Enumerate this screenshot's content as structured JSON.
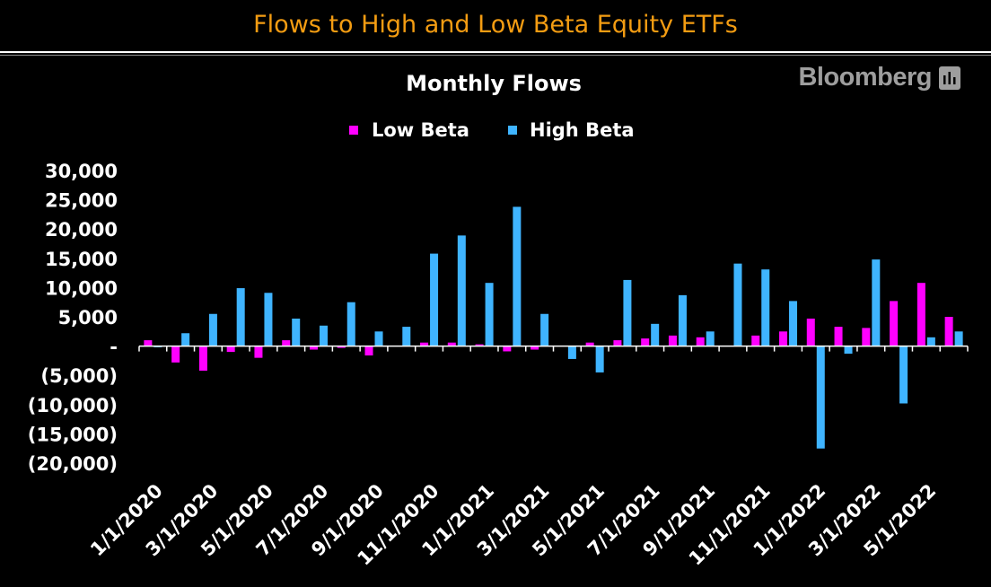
{
  "header": {
    "title": "Flows to High and Low Beta Equity ETFs",
    "brand": "Bloomberg",
    "brand_icon": "bloomberg-terminal-icon"
  },
  "colors": {
    "title": "#f39c12",
    "low_beta": "#ff00ff",
    "high_beta": "#3fb4ff",
    "axis": "#ffffff",
    "background": "#000000"
  },
  "chart_data": {
    "type": "bar",
    "title": "Monthly Flows",
    "xlabel": "",
    "ylabel": "",
    "ylim": [
      -20000,
      30000
    ],
    "yticks": [
      30000,
      25000,
      20000,
      15000,
      10000,
      5000,
      0,
      -5000,
      -10000,
      -15000,
      -20000
    ],
    "ytick_labels": [
      "30,000",
      "25,000",
      "20,000",
      "15,000",
      "10,000",
      "5,000",
      "-",
      "(5,000)",
      "(10,000)",
      "(15,000)",
      "(20,000)"
    ],
    "legend_position": "top-center",
    "categories": [
      "1/1/2020",
      "2/1/2020",
      "3/1/2020",
      "4/1/2020",
      "5/1/2020",
      "6/1/2020",
      "7/1/2020",
      "8/1/2020",
      "9/1/2020",
      "10/1/2020",
      "11/1/2020",
      "12/1/2020",
      "1/1/2021",
      "2/1/2021",
      "3/1/2021",
      "4/1/2021",
      "5/1/2021",
      "6/1/2021",
      "7/1/2021",
      "8/1/2021",
      "9/1/2021",
      "10/1/2021",
      "11/1/2021",
      "12/1/2021",
      "1/1/2022",
      "2/1/2022",
      "3/1/2022",
      "4/1/2022",
      "5/1/2022",
      "6/1/2022"
    ],
    "xtick_labels": [
      "1/1/2020",
      "3/1/2020",
      "5/1/2020",
      "7/1/2020",
      "9/1/2020",
      "11/1/2020",
      "1/1/2021",
      "3/1/2021",
      "5/1/2021",
      "7/1/2021",
      "9/1/2021",
      "11/1/2021",
      "1/1/2022",
      "3/1/2022",
      "5/1/2022"
    ],
    "series": [
      {
        "name": "Low Beta",
        "values": [
          1000,
          -2800,
          -4200,
          -1000,
          -2000,
          1000,
          -600,
          -300,
          -1600,
          0,
          600,
          600,
          300,
          -900,
          -600,
          0,
          600,
          1000,
          1300,
          1800,
          1500,
          0,
          1800,
          2500,
          4700,
          3300,
          3100,
          7700,
          10800,
          5000
        ]
      },
      {
        "name": "High Beta",
        "values": [
          -200,
          2200,
          5500,
          9900,
          9100,
          4700,
          3500,
          7500,
          2500,
          3300,
          15800,
          18900,
          10800,
          23800,
          5500,
          -2200,
          -4500,
          11300,
          3800,
          8700,
          2500,
          14100,
          13100,
          7700,
          -17500,
          -1300,
          14800,
          -9800,
          1500,
          2500
        ]
      }
    ]
  }
}
